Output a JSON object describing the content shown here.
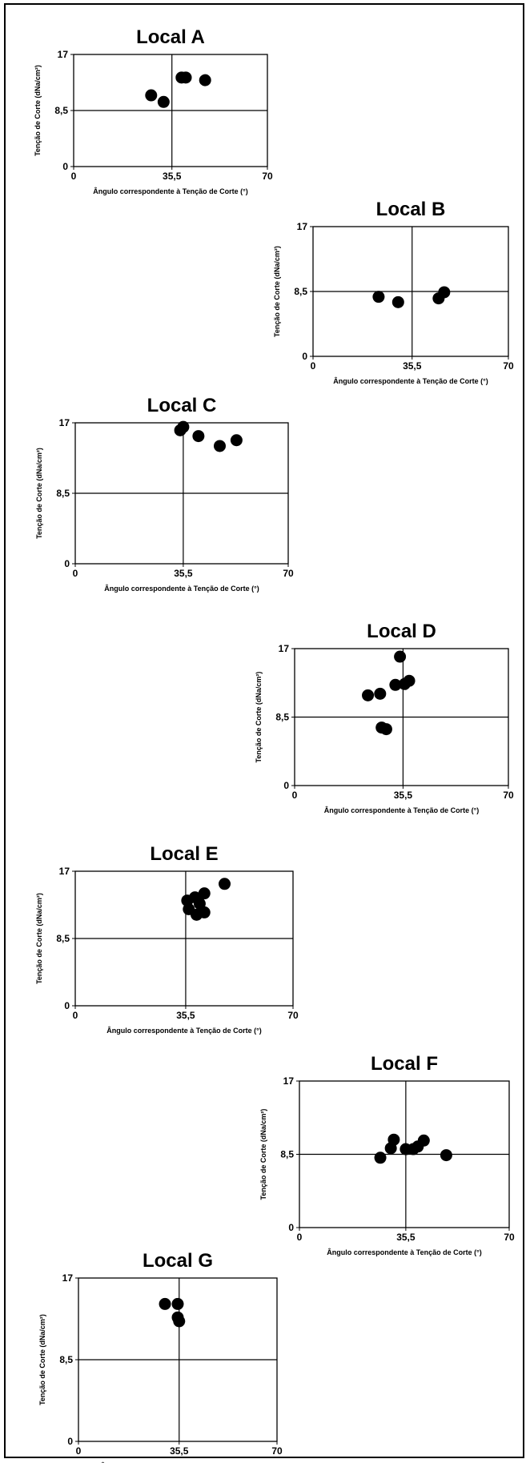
{
  "chart_data": [
    {
      "type": "scatter",
      "title": "Local A",
      "xlabel": "Ângulo correspondente à Tenção de Corte (°)",
      "ylabel": "Tenção de Corte (dNa/cm²)",
      "xlim": [
        0,
        70
      ],
      "ylim": [
        0,
        17
      ],
      "xticks": [
        "0",
        "35,5",
        "70"
      ],
      "yticks": [
        "0",
        "8,5",
        "17"
      ],
      "ref_lines": {
        "x": 35.5,
        "y": 8.5
      },
      "points": [
        [
          28,
          10.8
        ],
        [
          32.5,
          9.8
        ],
        [
          39,
          13.5
        ],
        [
          40.5,
          13.5
        ],
        [
          47.5,
          13.1
        ]
      ]
    },
    {
      "type": "scatter",
      "title": "Local B",
      "xlabel": "Ângulo correspondente à Tenção de Corte (°)",
      "ylabel": "Tenção de Corte (dNa/cm²)",
      "xlim": [
        0,
        70
      ],
      "ylim": [
        0,
        17
      ],
      "xticks": [
        "0",
        "35,5",
        "70"
      ],
      "yticks": [
        "0",
        "8,5",
        "17"
      ],
      "ref_lines": {
        "x": 35.5,
        "y": 8.5
      },
      "points": [
        [
          23.5,
          7.8
        ],
        [
          30.5,
          7.1
        ],
        [
          45,
          7.6
        ],
        [
          47,
          8.4
        ]
      ]
    },
    {
      "type": "scatter",
      "title": "Local C",
      "xlabel": "Ângulo correspondente à Tenção de Corte (°)",
      "ylabel": "Tenção de Corte (dNa/cm²)",
      "xlim": [
        0,
        70
      ],
      "ylim": [
        0,
        17
      ],
      "xticks": [
        "0",
        "35,5",
        "70"
      ],
      "yticks": [
        "0",
        "8,5",
        "17"
      ],
      "ref_lines": {
        "x": 35.5,
        "y": 8.5
      },
      "points": [
        [
          34.5,
          16.1
        ],
        [
          35.5,
          16.5
        ],
        [
          40.5,
          15.4
        ],
        [
          47.5,
          14.2
        ],
        [
          53,
          14.9
        ]
      ]
    },
    {
      "type": "scatter",
      "title": "Local D",
      "xlabel": "Ângulo correspondente à Tenção de Corte (°)",
      "ylabel": "Tenção de Corte (dNa/cm²)",
      "xlim": [
        0,
        70
      ],
      "ylim": [
        0,
        17
      ],
      "xticks": [
        "0",
        "35,5",
        "70"
      ],
      "yticks": [
        "0",
        "8,5",
        "17"
      ],
      "ref_lines": {
        "x": 35.5,
        "y": 8.5
      },
      "points": [
        [
          24,
          11.2
        ],
        [
          28,
          11.4
        ],
        [
          28.5,
          7.2
        ],
        [
          30,
          7.0
        ],
        [
          33,
          12.5
        ],
        [
          34.5,
          16.0
        ],
        [
          36,
          12.6
        ],
        [
          37.5,
          13.0
        ]
      ]
    },
    {
      "type": "scatter",
      "title": "Local E",
      "xlabel": "Ângulo correspondente à Tenção de Corte (°)",
      "ylabel": "Tenção de Corte (dNa/cm²)",
      "xlim": [
        0,
        70
      ],
      "ylim": [
        0,
        17
      ],
      "xticks": [
        "0",
        "35,5",
        "70"
      ],
      "yticks": [
        "0",
        "8,5",
        "17"
      ],
      "ref_lines": {
        "x": 35.5,
        "y": 8.5
      },
      "points": [
        [
          36,
          13.3
        ],
        [
          36.5,
          12.2
        ],
        [
          38.5,
          13.7
        ],
        [
          39,
          11.5
        ],
        [
          40,
          12.9
        ],
        [
          41.5,
          14.2
        ],
        [
          41.5,
          11.8
        ],
        [
          48,
          15.4
        ]
      ]
    },
    {
      "type": "scatter",
      "title": "Local F",
      "xlabel": "Ângulo correspondente à Tenção de Corte (°)",
      "ylabel": "Tenção de Corte (dNa/cm²)",
      "xlim": [
        0,
        70
      ],
      "ylim": [
        0,
        17
      ],
      "xticks": [
        "0",
        "35,5",
        "70"
      ],
      "yticks": [
        "0",
        "8,5",
        "17"
      ],
      "ref_lines": {
        "x": 35.5,
        "y": 8.5
      },
      "points": [
        [
          27,
          8.1
        ],
        [
          30.5,
          9.2
        ],
        [
          31.5,
          10.2
        ],
        [
          35.5,
          9.1
        ],
        [
          38,
          9.1
        ],
        [
          39.5,
          9.4
        ],
        [
          41.5,
          10.1
        ],
        [
          49,
          8.4
        ]
      ]
    },
    {
      "type": "scatter",
      "title": "Local G",
      "xlabel": "Ângulo correspondente à Tenção de Corte (°)",
      "ylabel": "Tenção de Corte (dNa/cm²)",
      "xlim": [
        0,
        70
      ],
      "ylim": [
        0,
        17
      ],
      "xticks": [
        "0",
        "35,5",
        "70"
      ],
      "yticks": [
        "0",
        "8,5",
        "17"
      ],
      "ref_lines": {
        "x": 35.5,
        "y": 8.5
      },
      "points": [
        [
          30.5,
          14.3
        ],
        [
          35,
          14.3
        ],
        [
          35,
          12.9
        ],
        [
          35.5,
          12.5
        ]
      ]
    }
  ]
}
